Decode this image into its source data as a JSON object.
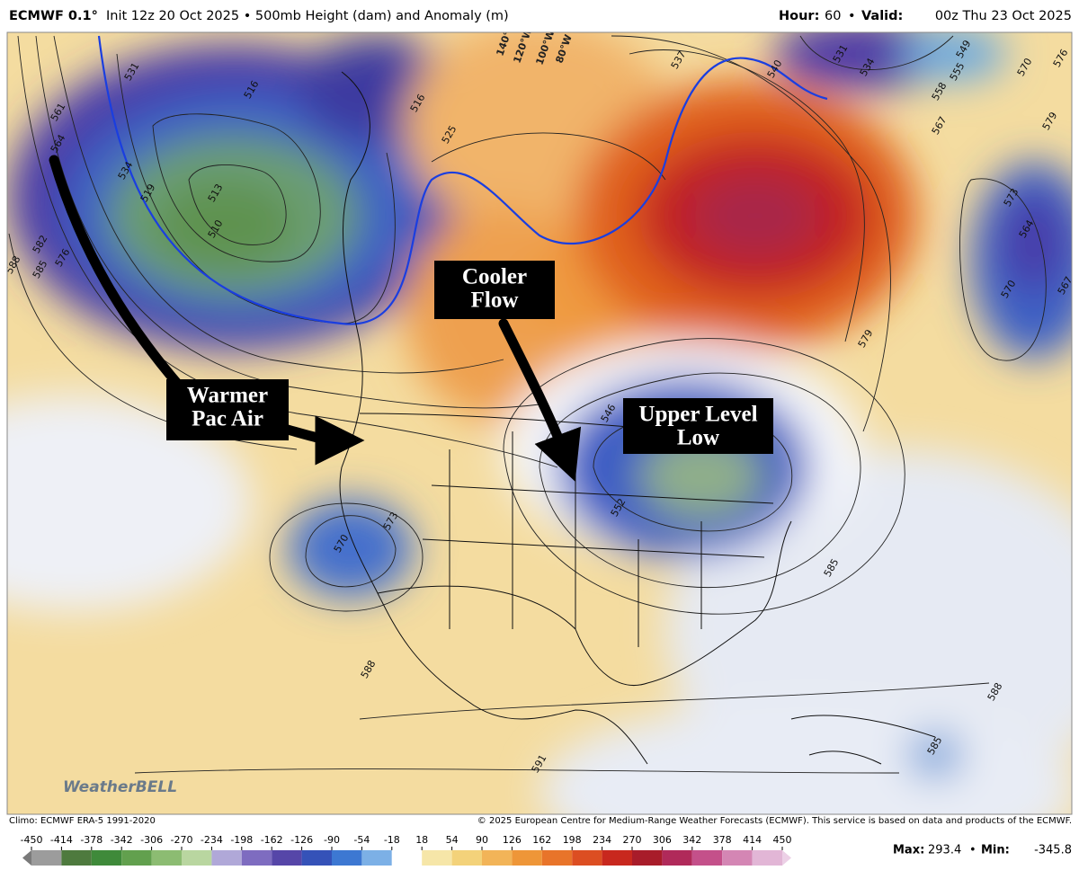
{
  "header": {
    "model": "ECMWF 0.1°",
    "info": "Init 12z 20 Oct 2025 • 500mb Height (dam) and Anomaly (m)",
    "hour_label": "Hour:",
    "hour": "60",
    "separator": "•",
    "valid_label": "Valid:",
    "valid": "00z Thu 23 Oct 2025"
  },
  "map": {
    "longitude_labels": [
      "140°W",
      "120°W",
      "100°W",
      "80°W"
    ],
    "contour_labels": [
      "531",
      "516",
      "516",
      "534",
      "519",
      "513",
      "510",
      "561",
      "564",
      "582",
      "585",
      "576",
      "588",
      "525",
      "537",
      "540",
      "531",
      "534",
      "549",
      "555",
      "558",
      "567",
      "570",
      "576",
      "579",
      "573",
      "564",
      "570",
      "567",
      "579",
      "546",
      "552",
      "570",
      "573",
      "585",
      "588",
      "591",
      "585",
      "588"
    ],
    "annotations": [
      {
        "lines": [
          "Warmer",
          "Pac Air"
        ]
      },
      {
        "lines": [
          "Cooler",
          "Flow"
        ]
      },
      {
        "lines": [
          "Upper Level",
          "Low"
        ]
      }
    ],
    "watermark": "WeatherBELL"
  },
  "footer": {
    "climo": "Climo: ECMWF ERA-5 1991-2020",
    "credit": "© 2025 European Centre for Medium-Range Weather Forecasts (ECMWF). This service is based on data and products of the ECMWF.",
    "max_label": "Max:",
    "max": 293.4,
    "separator": "•",
    "min_label": "Min:",
    "min": -345.8
  },
  "colorbar": {
    "ticks": [
      -450,
      -414,
      -378,
      -342,
      -306,
      -270,
      -234,
      -198,
      -162,
      -126,
      -90,
      -54,
      -18,
      18,
      54,
      90,
      126,
      162,
      198,
      234,
      270,
      306,
      342,
      378,
      414,
      450
    ],
    "colors": [
      "#9c9c9c",
      "#4e7a3e",
      "#3f8a3a",
      "#62a04e",
      "#8cbc72",
      "#b9d6a0",
      "#b0a8d8",
      "#7e6cc0",
      "#5646a8",
      "#3552b8",
      "#3d78d2",
      "#7cb0e6",
      "#ffffff",
      "#f6e6a8",
      "#f3d27a",
      "#f2b458",
      "#ee9638",
      "#e8742a",
      "#dc4e22",
      "#c8281e",
      "#a81c2a",
      "#b02a5a",
      "#c4508a",
      "#d486b4",
      "#e2b6d6"
    ]
  }
}
